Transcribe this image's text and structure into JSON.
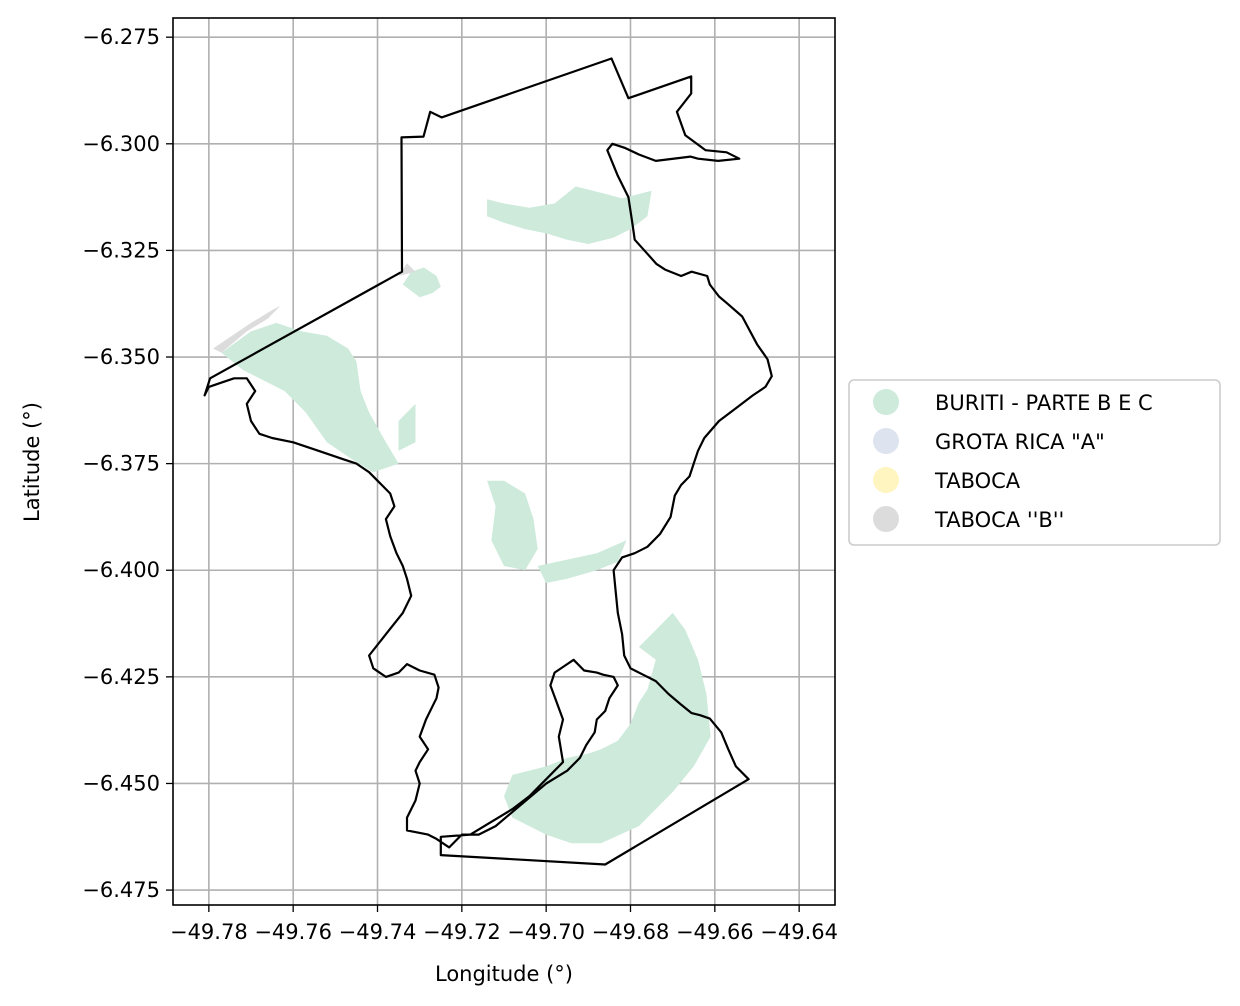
{
  "chart_data": {
    "type": "map",
    "xlabel": "Longitude (°)",
    "ylabel": "Latitude (°)",
    "xlim": [
      -49.7885,
      -49.6315
    ],
    "ylim": [
      -6.4785,
      -6.2705
    ],
    "x_ticks": [
      -49.78,
      -49.76,
      -49.74,
      -49.72,
      -49.7,
      -49.68,
      -49.66,
      -49.64
    ],
    "x_tick_labels": [
      "−49.78",
      "−49.76",
      "−49.74",
      "−49.72",
      "−49.70",
      "−49.68",
      "−49.66",
      "−49.64"
    ],
    "y_ticks": [
      -6.275,
      -6.3,
      -6.325,
      -6.35,
      -6.375,
      -6.4,
      -6.425,
      -6.45,
      -6.475
    ],
    "y_tick_labels": [
      "−6.275",
      "−6.300",
      "−6.325",
      "−6.350",
      "−6.375",
      "−6.400",
      "−6.425",
      "−6.450",
      "−6.475"
    ],
    "grid": true,
    "legend_position": "right",
    "legend": [
      {
        "label": "BURITI - PARTE B E C",
        "color": "#cdeadb"
      },
      {
        "label": "GROTA RICA \"A\"",
        "color": "#dde3ef"
      },
      {
        "label": "TABOCA",
        "color": "#fff5c0"
      },
      {
        "label": "TABOCA ''B''",
        "color": "#dcdcdc"
      }
    ],
    "outline_color": "#000000",
    "outline": [
      [
        -49.7797,
        -6.355
      ],
      [
        -49.7342,
        -6.33
      ],
      [
        -49.7343,
        -6.2985
      ],
      [
        -49.7291,
        -6.2983
      ],
      [
        -49.7275,
        -6.2925
      ],
      [
        -49.7248,
        -6.2938
      ],
      [
        -49.6845,
        -6.28
      ],
      [
        -49.6805,
        -6.2893
      ],
      [
        -49.6656,
        -6.2842
      ],
      [
        -49.6656,
        -6.2882
      ],
      [
        -49.669,
        -6.2925
      ],
      [
        -49.667,
        -6.298
      ],
      [
        -49.6622,
        -6.3015
      ],
      [
        -49.6572,
        -6.302
      ],
      [
        -49.6542,
        -6.3035
      ],
      [
        -49.6592,
        -6.304
      ],
      [
        -49.664,
        -6.3035
      ],
      [
        -49.6658,
        -6.303
      ],
      [
        -49.674,
        -6.304
      ],
      [
        -49.678,
        -6.3025
      ],
      [
        -49.6812,
        -6.301
      ],
      [
        -49.6843,
        -6.3
      ],
      [
        -49.6855,
        -6.3015
      ],
      [
        -49.683,
        -6.3075
      ],
      [
        -49.6805,
        -6.3125
      ],
      [
        -49.6795,
        -6.319
      ],
      [
        -49.679,
        -6.3225
      ],
      [
        -49.676,
        -6.3258
      ],
      [
        -49.6738,
        -6.3282
      ],
      [
        -49.6718,
        -6.3295
      ],
      [
        -49.668,
        -6.331
      ],
      [
        -49.6655,
        -6.33
      ],
      [
        -49.6618,
        -6.331
      ],
      [
        -49.6612,
        -6.333
      ],
      [
        -49.659,
        -6.3358
      ],
      [
        -49.657,
        -6.3375
      ],
      [
        -49.6535,
        -6.3405
      ],
      [
        -49.65,
        -6.347
      ],
      [
        -49.6475,
        -6.3505
      ],
      [
        -49.6465,
        -6.3545
      ],
      [
        -49.648,
        -6.357
      ],
      [
        -49.651,
        -6.359
      ],
      [
        -49.655,
        -6.362
      ],
      [
        -49.659,
        -6.365
      ],
      [
        -49.6625,
        -6.369
      ],
      [
        -49.664,
        -6.372
      ],
      [
        -49.665,
        -6.375
      ],
      [
        -49.666,
        -6.378
      ],
      [
        -49.668,
        -6.38
      ],
      [
        -49.6695,
        -6.3825
      ],
      [
        -49.6705,
        -6.3875
      ],
      [
        -49.673,
        -6.3915
      ],
      [
        -49.676,
        -6.3945
      ],
      [
        -49.679,
        -6.396
      ],
      [
        -49.682,
        -6.397
      ],
      [
        -49.684,
        -6.4
      ],
      [
        -49.6835,
        -6.405
      ],
      [
        -49.683,
        -6.41
      ],
      [
        -49.682,
        -6.415
      ],
      [
        -49.6815,
        -6.42
      ],
      [
        -49.68,
        -6.423
      ],
      [
        -49.677,
        -6.4245
      ],
      [
        -49.674,
        -6.426
      ],
      [
        -49.671,
        -6.429
      ],
      [
        -49.668,
        -6.4315
      ],
      [
        -49.6655,
        -6.4335
      ],
      [
        -49.6635,
        -6.434
      ],
      [
        -49.6612,
        -6.4348
      ],
      [
        -49.6585,
        -6.438
      ],
      [
        -49.6568,
        -6.442
      ],
      [
        -49.655,
        -6.446
      ],
      [
        -49.652,
        -6.449
      ],
      [
        -49.686,
        -6.469
      ],
      [
        -49.725,
        -6.4668
      ],
      [
        -49.725,
        -6.4625
      ],
      [
        -49.718,
        -6.462
      ],
      [
        -49.708,
        -6.456
      ],
      [
        -49.704,
        -6.453
      ],
      [
        -49.7,
        -6.449
      ],
      [
        -49.696,
        -6.445
      ],
      [
        -49.697,
        -6.439
      ],
      [
        -49.696,
        -6.435
      ],
      [
        -49.6975,
        -6.431
      ],
      [
        -49.699,
        -6.427
      ],
      [
        -49.698,
        -6.424
      ],
      [
        -49.695,
        -6.422
      ],
      [
        -49.6935,
        -6.421
      ],
      [
        -49.691,
        -6.4235
      ],
      [
        -49.688,
        -6.424
      ],
      [
        -49.6865,
        -6.4245
      ],
      [
        -49.684,
        -6.425
      ],
      [
        -49.683,
        -6.427
      ],
      [
        -49.685,
        -6.43
      ],
      [
        -49.686,
        -6.433
      ],
      [
        -49.688,
        -6.435
      ],
      [
        -49.6885,
        -6.438
      ],
      [
        -49.6905,
        -6.441
      ],
      [
        -49.692,
        -6.444
      ],
      [
        -49.695,
        -6.447
      ],
      [
        -49.7,
        -6.45
      ],
      [
        -49.706,
        -6.455
      ],
      [
        -49.712,
        -6.46
      ],
      [
        -49.716,
        -6.462
      ],
      [
        -49.72,
        -6.462
      ],
      [
        -49.723,
        -6.465
      ],
      [
        -49.726,
        -6.463
      ],
      [
        -49.728,
        -6.462
      ],
      [
        -49.733,
        -6.461
      ],
      [
        -49.733,
        -6.458
      ],
      [
        -49.731,
        -6.454
      ],
      [
        -49.73,
        -6.45
      ],
      [
        -49.731,
        -6.447
      ],
      [
        -49.73,
        -6.445
      ],
      [
        -49.728,
        -6.442
      ],
      [
        -49.73,
        -6.439
      ],
      [
        -49.7285,
        -6.435
      ],
      [
        -49.727,
        -6.432
      ],
      [
        -49.726,
        -6.43
      ],
      [
        -49.7255,
        -6.4275
      ],
      [
        -49.7265,
        -6.4245
      ],
      [
        -49.73,
        -6.4235
      ],
      [
        -49.733,
        -6.422
      ],
      [
        -49.735,
        -6.424
      ],
      [
        -49.738,
        -6.425
      ],
      [
        -49.741,
        -6.423
      ],
      [
        -49.742,
        -6.42
      ],
      [
        -49.738,
        -6.415
      ],
      [
        -49.734,
        -6.41
      ],
      [
        -49.732,
        -6.406
      ],
      [
        -49.733,
        -6.402
      ],
      [
        -49.734,
        -6.399
      ],
      [
        -49.7355,
        -6.396
      ],
      [
        -49.737,
        -6.392
      ],
      [
        -49.738,
        -6.388
      ],
      [
        -49.736,
        -6.385
      ],
      [
        -49.737,
        -6.382
      ],
      [
        -49.74,
        -6.379
      ],
      [
        -49.742,
        -6.377
      ],
      [
        -49.745,
        -6.375
      ],
      [
        -49.748,
        -6.374
      ],
      [
        -49.754,
        -6.372
      ],
      [
        -49.76,
        -6.37
      ],
      [
        -49.765,
        -6.369
      ],
      [
        -49.768,
        -6.368
      ],
      [
        -49.77,
        -6.365
      ],
      [
        -49.771,
        -6.361
      ],
      [
        -49.769,
        -6.358
      ],
      [
        -49.771,
        -6.355
      ],
      [
        -49.774,
        -6.355
      ],
      [
        -49.777,
        -6.356
      ],
      [
        -49.78,
        -6.357
      ],
      [
        -49.781,
        -6.359
      ],
      [
        -49.7797,
        -6.355
      ]
    ],
    "regions": [
      {
        "name": "BURITI - PARTE B E C",
        "color": "#cdeadb",
        "polygons": [
          [
            [
              -49.714,
              -6.313
            ],
            [
              -49.71,
              -6.314
            ],
            [
              -49.704,
              -6.315
            ],
            [
              -49.698,
              -6.314
            ],
            [
              -49.693,
              -6.31
            ],
            [
              -49.687,
              -6.3115
            ],
            [
              -49.682,
              -6.3128
            ],
            [
              -49.675,
              -6.311
            ],
            [
              -49.676,
              -6.317
            ],
            [
              -49.68,
              -6.32
            ],
            [
              -49.684,
              -6.322
            ],
            [
              -49.69,
              -6.3235
            ],
            [
              -49.695,
              -6.3225
            ],
            [
              -49.7,
              -6.321
            ],
            [
              -49.705,
              -6.32
            ],
            [
              -49.71,
              -6.3185
            ],
            [
              -49.714,
              -6.317
            ]
          ],
          [
            [
              -49.732,
              -6.33
            ],
            [
              -49.729,
              -6.329
            ],
            [
              -49.726,
              -6.331
            ],
            [
              -49.725,
              -6.3335
            ],
            [
              -49.727,
              -6.335
            ],
            [
              -49.73,
              -6.336
            ],
            [
              -49.734,
              -6.333
            ]
          ],
          [
            [
              -49.777,
              -6.349
            ],
            [
              -49.77,
              -6.344
            ],
            [
              -49.764,
              -6.342
            ],
            [
              -49.758,
              -6.344
            ],
            [
              -49.752,
              -6.345
            ],
            [
              -49.747,
              -6.348
            ],
            [
              -49.745,
              -6.351
            ],
            [
              -49.744,
              -6.358
            ],
            [
              -49.742,
              -6.363
            ],
            [
              -49.738,
              -6.37
            ],
            [
              -49.735,
              -6.375
            ],
            [
              -49.741,
              -6.377
            ],
            [
              -49.746,
              -6.374
            ],
            [
              -49.752,
              -6.37
            ],
            [
              -49.757,
              -6.363
            ],
            [
              -49.762,
              -6.358
            ],
            [
              -49.768,
              -6.355
            ],
            [
              -49.772,
              -6.353
            ]
          ],
          [
            [
              -49.735,
              -6.365
            ],
            [
              -49.731,
              -6.361
            ],
            [
              -49.731,
              -6.37
            ],
            [
              -49.735,
              -6.372
            ]
          ],
          [
            [
              -49.714,
              -6.379
            ],
            [
              -49.712,
              -6.385
            ],
            [
              -49.713,
              -6.393
            ],
            [
              -49.71,
              -6.399
            ],
            [
              -49.705,
              -6.4
            ],
            [
              -49.702,
              -6.395
            ],
            [
              -49.703,
              -6.388
            ],
            [
              -49.705,
              -6.382
            ],
            [
              -49.71,
              -6.379
            ]
          ],
          [
            [
              -49.702,
              -6.399
            ],
            [
              -49.695,
              -6.3975
            ],
            [
              -49.688,
              -6.396
            ],
            [
              -49.681,
              -6.393
            ],
            [
              -49.683,
              -6.398
            ],
            [
              -49.688,
              -6.4
            ],
            [
              -49.695,
              -6.402
            ],
            [
              -49.7,
              -6.403
            ]
          ],
          [
            [
              -49.678,
              -6.418
            ],
            [
              -49.674,
              -6.421
            ],
            [
              -49.676,
              -6.428
            ],
            [
              -49.678,
              -6.431
            ],
            [
              -49.68,
              -6.436
            ],
            [
              -49.683,
              -6.44
            ],
            [
              -49.687,
              -6.442
            ],
            [
              -49.69,
              -6.443
            ],
            [
              -49.695,
              -6.444
            ],
            [
              -49.7,
              -6.446
            ],
            [
              -49.708,
              -6.448
            ],
            [
              -49.71,
              -6.453
            ],
            [
              -49.708,
              -6.458
            ],
            [
              -49.7,
              -6.462
            ],
            [
              -49.694,
              -6.464
            ],
            [
              -49.687,
              -6.464
            ],
            [
              -49.678,
              -6.46
            ],
            [
              -49.67,
              -6.452
            ],
            [
              -49.665,
              -6.446
            ],
            [
              -49.661,
              -6.439
            ],
            [
              -49.662,
              -6.429
            ],
            [
              -49.664,
              -6.421
            ],
            [
              -49.667,
              -6.414
            ],
            [
              -49.67,
              -6.41
            ],
            [
              -49.673,
              -6.413
            ]
          ]
        ]
      },
      {
        "name": "TABOCA ''B''",
        "color": "#dcdcdc",
        "polygons": [
          [
            [
              -49.779,
              -6.348
            ],
            [
              -49.77,
              -6.342
            ],
            [
              -49.765,
              -6.339
            ],
            [
              -49.763,
              -6.338
            ],
            [
              -49.766,
              -6.341
            ],
            [
              -49.771,
              -6.344
            ],
            [
              -49.777,
              -6.349
            ]
          ],
          [
            [
              -49.733,
              -6.328
            ],
            [
              -49.731,
              -6.33
            ],
            [
              -49.735,
              -6.331
            ]
          ]
        ]
      }
    ]
  }
}
